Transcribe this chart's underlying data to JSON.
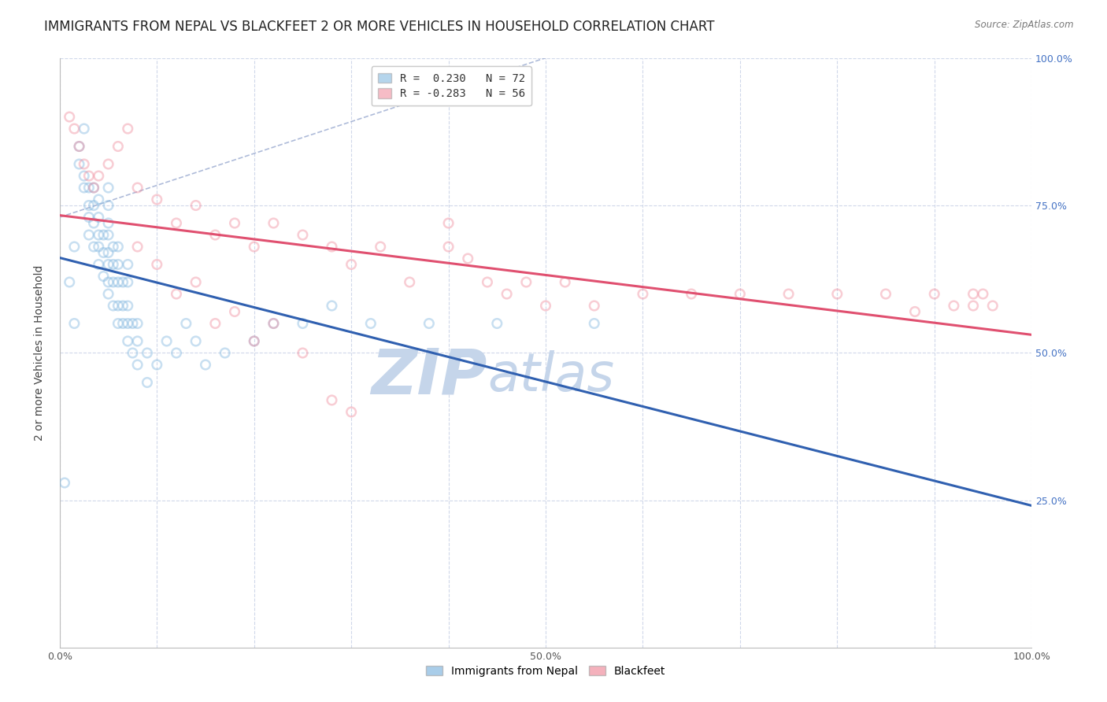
{
  "title": "IMMIGRANTS FROM NEPAL VS BLACKFEET 2 OR MORE VEHICLES IN HOUSEHOLD CORRELATION CHART",
  "source": "Source: ZipAtlas.com",
  "ylabel": "2 or more Vehicles in Household",
  "xmin": 0.0,
  "xmax": 1.0,
  "ymin": 0.0,
  "ymax": 1.0,
  "x_tick_vals": [
    0.0,
    0.1,
    0.2,
    0.3,
    0.4,
    0.5,
    0.6,
    0.7,
    0.8,
    0.9,
    1.0
  ],
  "x_tick_labels": [
    "0.0%",
    "",
    "",
    "",
    "",
    "50.0%",
    "",
    "",
    "",
    "",
    "100.0%"
  ],
  "y_tick_vals_right": [
    0.25,
    0.5,
    0.75,
    1.0
  ],
  "y_tick_labels_right": [
    "25.0%",
    "50.0%",
    "75.0%",
    "100.0%"
  ],
  "legend_R_N_label_1": "R =  0.230   N = 72",
  "legend_R_N_label_2": "R = -0.283   N = 56",
  "nepal_color": "#85b9e0",
  "blackfeet_color": "#f090a0",
  "nepal_line_color": "#3060b0",
  "blackfeet_line_color": "#e05070",
  "dashed_line_color": "#9aaad0",
  "watermark_zip": "ZIP",
  "watermark_atlas": "atlas",
  "watermark_color": "#c5d5ea",
  "nepal_scatter_x": [
    0.005,
    0.01,
    0.015,
    0.015,
    0.02,
    0.02,
    0.025,
    0.025,
    0.025,
    0.03,
    0.03,
    0.03,
    0.03,
    0.035,
    0.035,
    0.035,
    0.035,
    0.04,
    0.04,
    0.04,
    0.04,
    0.04,
    0.045,
    0.045,
    0.045,
    0.05,
    0.05,
    0.05,
    0.05,
    0.05,
    0.05,
    0.05,
    0.05,
    0.055,
    0.055,
    0.055,
    0.055,
    0.06,
    0.06,
    0.06,
    0.06,
    0.06,
    0.065,
    0.065,
    0.065,
    0.07,
    0.07,
    0.07,
    0.07,
    0.07,
    0.075,
    0.075,
    0.08,
    0.08,
    0.08,
    0.09,
    0.09,
    0.1,
    0.11,
    0.12,
    0.13,
    0.14,
    0.15,
    0.17,
    0.2,
    0.22,
    0.25,
    0.28,
    0.32,
    0.38,
    0.45,
    0.55
  ],
  "nepal_scatter_y": [
    0.28,
    0.62,
    0.55,
    0.68,
    0.82,
    0.85,
    0.78,
    0.8,
    0.88,
    0.7,
    0.73,
    0.75,
    0.78,
    0.68,
    0.72,
    0.75,
    0.78,
    0.65,
    0.68,
    0.7,
    0.73,
    0.76,
    0.63,
    0.67,
    0.7,
    0.6,
    0.62,
    0.65,
    0.67,
    0.7,
    0.72,
    0.75,
    0.78,
    0.58,
    0.62,
    0.65,
    0.68,
    0.55,
    0.58,
    0.62,
    0.65,
    0.68,
    0.55,
    0.58,
    0.62,
    0.52,
    0.55,
    0.58,
    0.62,
    0.65,
    0.5,
    0.55,
    0.48,
    0.52,
    0.55,
    0.45,
    0.5,
    0.48,
    0.52,
    0.5,
    0.55,
    0.52,
    0.48,
    0.5,
    0.52,
    0.55,
    0.55,
    0.58,
    0.55,
    0.55,
    0.55,
    0.55
  ],
  "blackfeet_scatter_x": [
    0.01,
    0.015,
    0.02,
    0.025,
    0.03,
    0.035,
    0.04,
    0.05,
    0.06,
    0.07,
    0.08,
    0.1,
    0.12,
    0.14,
    0.16,
    0.18,
    0.2,
    0.22,
    0.25,
    0.28,
    0.3,
    0.33,
    0.36,
    0.4,
    0.4,
    0.42,
    0.44,
    0.46,
    0.48,
    0.5,
    0.52,
    0.55,
    0.6,
    0.65,
    0.7,
    0.75,
    0.8,
    0.85,
    0.88,
    0.9,
    0.92,
    0.94,
    0.94,
    0.95,
    0.96,
    0.08,
    0.1,
    0.12,
    0.14,
    0.16,
    0.18,
    0.2,
    0.22,
    0.25,
    0.28,
    0.3
  ],
  "blackfeet_scatter_y": [
    0.9,
    0.88,
    0.85,
    0.82,
    0.8,
    0.78,
    0.8,
    0.82,
    0.85,
    0.88,
    0.78,
    0.76,
    0.72,
    0.75,
    0.7,
    0.72,
    0.68,
    0.72,
    0.7,
    0.68,
    0.65,
    0.68,
    0.62,
    0.68,
    0.72,
    0.66,
    0.62,
    0.6,
    0.62,
    0.58,
    0.62,
    0.58,
    0.6,
    0.6,
    0.6,
    0.6,
    0.6,
    0.6,
    0.57,
    0.6,
    0.58,
    0.58,
    0.6,
    0.6,
    0.58,
    0.68,
    0.65,
    0.6,
    0.62,
    0.55,
    0.57,
    0.52,
    0.55,
    0.5,
    0.42,
    0.4
  ],
  "background_color": "#ffffff",
  "grid_color": "#d0d8ea",
  "title_fontsize": 12,
  "axis_label_fontsize": 10,
  "tick_fontsize": 9,
  "legend_fontsize": 10,
  "scatter_size": 70,
  "scatter_alpha": 0.45,
  "line_width": 2.2
}
